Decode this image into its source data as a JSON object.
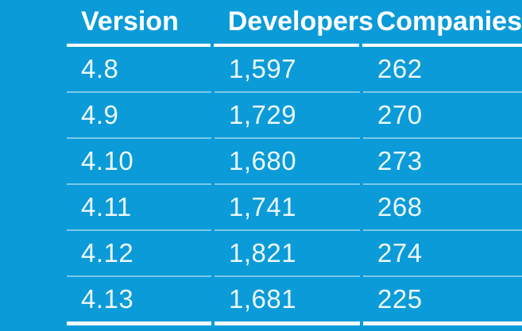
{
  "colors": {
    "background": "#0B9BD8",
    "header_text": "#FFFFFF",
    "data_text": "#FFFFFF",
    "header_rule": "#FFFFFF",
    "row_divider": "rgba(255,255,255,0.45)"
  },
  "table": {
    "columns": [
      {
        "label": "Version"
      },
      {
        "label": "Developers"
      },
      {
        "label": "Companies"
      }
    ],
    "rows": [
      {
        "version": "4.8",
        "developers": "1,597",
        "companies": "262"
      },
      {
        "version": "4.9",
        "developers": "1,729",
        "companies": "270"
      },
      {
        "version": "4.10",
        "developers": "1,680",
        "companies": "273"
      },
      {
        "version": "4.11",
        "developers": "1,741",
        "companies": "268"
      },
      {
        "version": "4.12",
        "developers": "1,821",
        "companies": "274"
      },
      {
        "version": "4.13",
        "developers": "1,681",
        "companies": "225"
      }
    ]
  },
  "chart_data": {
    "type": "table",
    "title": "",
    "columns": [
      "Version",
      "Developers",
      "Companies"
    ],
    "categories": [
      "4.8",
      "4.9",
      "4.10",
      "4.11",
      "4.12",
      "4.13"
    ],
    "series": [
      {
        "name": "Developers",
        "values": [
          1597,
          1729,
          1680,
          1741,
          1821,
          1681
        ]
      },
      {
        "name": "Companies",
        "values": [
          262,
          270,
          273,
          268,
          274,
          225
        ]
      }
    ]
  }
}
